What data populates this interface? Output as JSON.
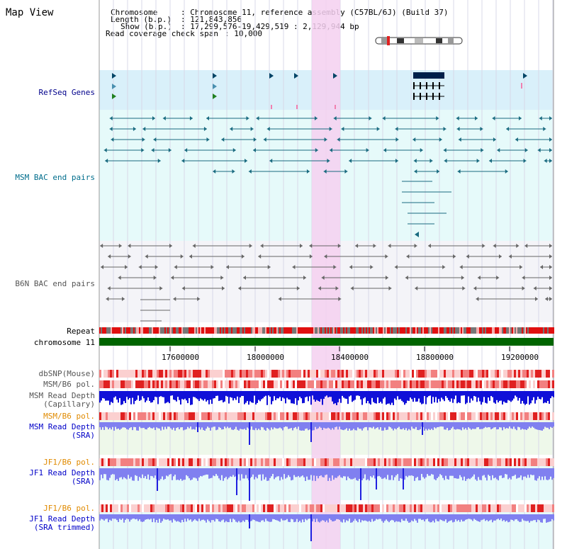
{
  "title": "Map View",
  "header": {
    "chromosome_key": "Chromosome",
    "chromosome_val": ": Chromosome 11, reference assembly (C57BL/6J) (Build 37)",
    "length_key": "Length (b.p.)",
    "length_val": ": 121,843,856",
    "show_key": "Show (b.p.)",
    "show_val": ": 17,299,576-19,429,519 : 2,129,944 bp",
    "coverage_key": "Read coverage check span",
    "coverage_val": ": 10,000"
  },
  "tracks": {
    "refseq": "RefSeq Genes",
    "msm_bac": "MSM BAC end pairs",
    "b6n_bac": "B6N BAC end pairs",
    "repeat": "Repeat",
    "chromosome": "chromosome 11",
    "dbsnp": "dbSNP(Mouse)",
    "msm_b6_pol_1": "MSM/B6 pol.",
    "msm_depth_cap_1": "MSM Read Depth",
    "msm_depth_cap_2": "(Capillary)",
    "msm_b6_pol_2": "MSM/B6 pol.",
    "msm_depth_1": "MSM Read Depth",
    "msm_depth_2": "(SRA)",
    "jf1_b6_pol_1": "JF1/B6 pol.",
    "jf1_depth_1": "JF1 Read Depth",
    "jf1_depth_2": "(SRA)",
    "jf1_b6_pol_2": "JF1/B6 pol.",
    "jf1_trim_1": "JF1 Read Depth",
    "jf1_trim_2": "(SRA trimmed)"
  },
  "axis": {
    "ticks": [
      "17600000",
      "18000000",
      "18400000",
      "18800000",
      "19200000"
    ]
  },
  "colors": {
    "highlight": "#f5d0f0",
    "refseq_bg": "#d9f0fa",
    "msm_bg": "#e6fafa",
    "b6n_bg": "#f4f4f8",
    "chrom": "#006400",
    "repeat_red": "#e01010",
    "repeat_grey": "#777777",
    "depth_blue": "#2020e0",
    "depth_light": "#8080f0"
  }
}
